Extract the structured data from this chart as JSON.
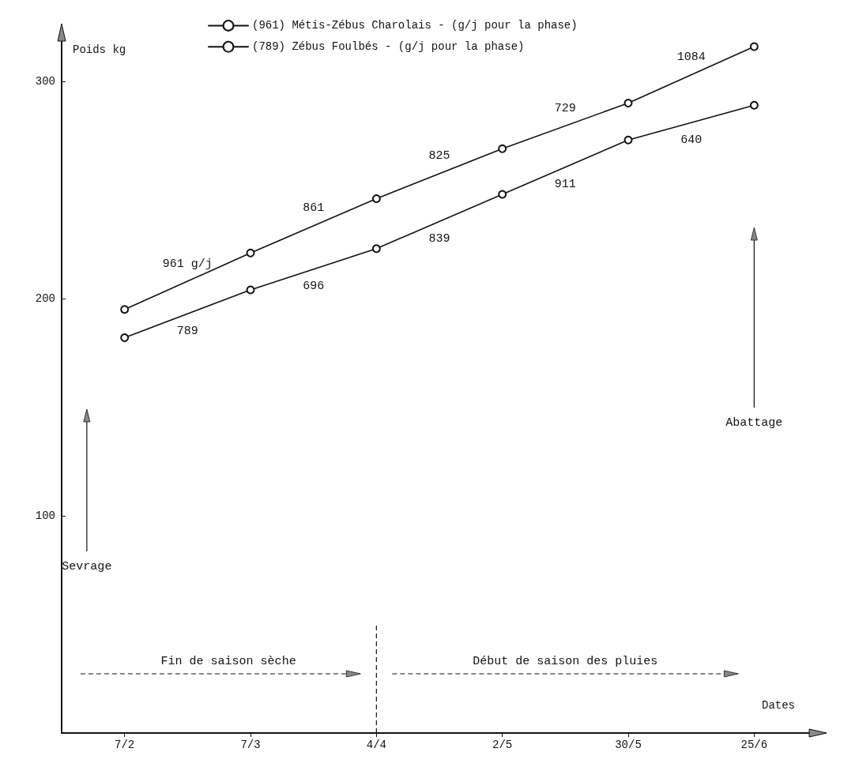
{
  "chart_data": {
    "type": "line",
    "xlabel": "Dates",
    "ylabel": "Poids kg",
    "categories": [
      "7/2",
      "7/3",
      "4/4",
      "2/5",
      "30/5",
      "25/6"
    ],
    "series": [
      {
        "name": "(961) Métis-Zébus Charolais - (g/j pour la phase)",
        "color": "#111111",
        "values": [
          195,
          221,
          246,
          269,
          290,
          316
        ]
      },
      {
        "name": "(789) Zébus Foulbés - (g/j pour la phase)",
        "color": "#111111",
        "values": [
          182,
          204,
          223,
          248,
          273,
          289
        ]
      }
    ],
    "ylim": [
      0,
      320
    ],
    "yticks": [
      100,
      200,
      300
    ],
    "grid": false,
    "legend": "top left",
    "marker": "circle",
    "line_style": "solid",
    "annotations": [
      "961 g/j",
      "861",
      "825",
      "729",
      "1084",
      "789",
      "696",
      "839",
      "911",
      "640",
      "Sevrage",
      "Abattage",
      "Fin de saison sèche",
      "Début de saison des pluies"
    ],
    "ref_lines": [
      {
        "axis": "x",
        "value": "4/4",
        "label": null,
        "line_style": "dashed"
      }
    ]
  }
}
